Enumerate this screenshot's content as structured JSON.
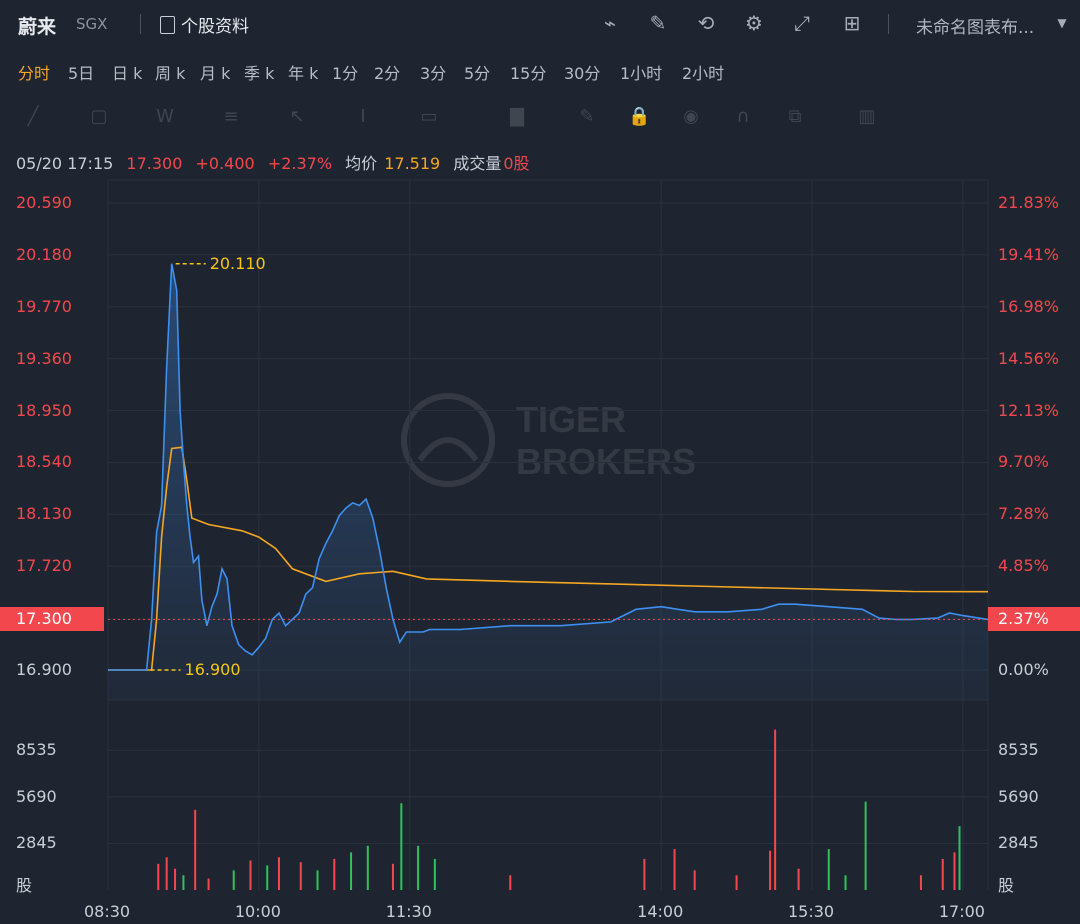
{
  "header": {
    "name": "蔚来",
    "exchange": "SGX",
    "info_label": "个股资料",
    "chart_title": "未命名图表布...",
    "icons": [
      "chart-line-icon",
      "edit-icon",
      "refresh-icon",
      "gear-icon",
      "fullscreen-icon",
      "grid-icon",
      "dropdown-icon"
    ]
  },
  "tabs": [
    {
      "label": "分时",
      "active": true
    },
    {
      "label": "5日"
    },
    {
      "label": "日 k"
    },
    {
      "label": "周 k"
    },
    {
      "label": "月 k"
    },
    {
      "label": "季 k"
    },
    {
      "label": "年 k"
    },
    {
      "label": "1分"
    },
    {
      "label": "2分"
    },
    {
      "label": "3分"
    },
    {
      "label": "5分"
    },
    {
      "label": "15分"
    },
    {
      "label": "30分"
    },
    {
      "label": "1小时"
    },
    {
      "label": "2小时"
    }
  ],
  "infobar": {
    "datetime": "05/20 17:15",
    "price": "17.300",
    "change": "+0.400",
    "pct": "+2.37%",
    "avg_label": "均价",
    "avg": "17.519",
    "vol_label": "成交量",
    "vol": "0",
    "vol_unit": "股"
  },
  "colors": {
    "up": "#f2484d",
    "down": "#2fc25b",
    "price_line": "#3d8ff0",
    "avg_line": "#f5a623",
    "background": "#1f2530"
  },
  "chart_data": {
    "type": "line",
    "price_axis_left": [
      "20.590",
      "20.180",
      "19.770",
      "19.360",
      "18.950",
      "18.540",
      "18.130",
      "17.720",
      "17.300",
      "16.900"
    ],
    "price_axis_right": [
      "21.83%",
      "19.41%",
      "16.98%",
      "14.56%",
      "12.13%",
      "9.70%",
      "7.28%",
      "4.85%",
      "2.37%",
      "0.00%"
    ],
    "current_price_tag": "17.300",
    "current_pct_tag": "2.37%",
    "high_label": "20.110",
    "low_label": "16.900",
    "volume_axis": [
      "8535",
      "5690",
      "2845",
      "股"
    ],
    "x_ticks": [
      "08:30",
      "10:00",
      "11:30",
      "14:00",
      "15:30",
      "17:00"
    ],
    "ylim": [
      16.9,
      20.59
    ],
    "price_series": [
      [
        "08:30",
        16.9
      ],
      [
        "08:53",
        16.9
      ],
      [
        "08:56",
        17.3
      ],
      [
        "08:59",
        17.99
      ],
      [
        "09:02",
        18.2
      ],
      [
        "09:05",
        19.3
      ],
      [
        "09:08",
        20.11
      ],
      [
        "09:11",
        19.9
      ],
      [
        "09:13",
        18.95
      ],
      [
        "09:15",
        18.55
      ],
      [
        "09:17",
        18.2
      ],
      [
        "09:19",
        17.95
      ],
      [
        "09:21",
        17.75
      ],
      [
        "09:24",
        17.8
      ],
      [
        "09:26",
        17.45
      ],
      [
        "09:29",
        17.25
      ],
      [
        "09:32",
        17.4
      ],
      [
        "09:35",
        17.5
      ],
      [
        "09:38",
        17.7
      ],
      [
        "09:41",
        17.62
      ],
      [
        "09:44",
        17.25
      ],
      [
        "09:48",
        17.1
      ],
      [
        "09:52",
        17.05
      ],
      [
        "09:56",
        17.02
      ],
      [
        "10:00",
        17.08
      ],
      [
        "10:04",
        17.15
      ],
      [
        "10:08",
        17.3
      ],
      [
        "10:12",
        17.35
      ],
      [
        "10:16",
        17.25
      ],
      [
        "10:20",
        17.3
      ],
      [
        "10:24",
        17.35
      ],
      [
        "10:28",
        17.5
      ],
      [
        "10:32",
        17.55
      ],
      [
        "10:36",
        17.78
      ],
      [
        "10:40",
        17.9
      ],
      [
        "10:44",
        18.0
      ],
      [
        "10:48",
        18.12
      ],
      [
        "10:52",
        18.18
      ],
      [
        "10:56",
        18.22
      ],
      [
        "11:00",
        18.2
      ],
      [
        "11:04",
        18.25
      ],
      [
        "11:08",
        18.1
      ],
      [
        "11:12",
        17.85
      ],
      [
        "11:16",
        17.55
      ],
      [
        "11:20",
        17.3
      ],
      [
        "11:24",
        17.12
      ],
      [
        "11:28",
        17.2
      ],
      [
        "11:34",
        17.2
      ],
      [
        "11:38",
        17.2
      ],
      [
        "11:42",
        17.22
      ],
      [
        "12:00",
        17.22
      ],
      [
        "12:30",
        17.25
      ],
      [
        "13:00",
        17.25
      ],
      [
        "13:30",
        17.28
      ],
      [
        "13:45",
        17.38
      ],
      [
        "14:00",
        17.4
      ],
      [
        "14:10",
        17.38
      ],
      [
        "14:20",
        17.36
      ],
      [
        "14:40",
        17.36
      ],
      [
        "15:00",
        17.38
      ],
      [
        "15:10",
        17.42
      ],
      [
        "15:20",
        17.42
      ],
      [
        "15:40",
        17.4
      ],
      [
        "16:00",
        17.38
      ],
      [
        "16:10",
        17.31
      ],
      [
        "16:20",
        17.3
      ],
      [
        "16:30",
        17.3
      ],
      [
        "16:45",
        17.31
      ],
      [
        "16:52",
        17.35
      ],
      [
        "17:00",
        17.33
      ],
      [
        "17:15",
        17.3
      ]
    ],
    "avg_series": [
      [
        "08:30",
        16.9
      ],
      [
        "08:56",
        16.9
      ],
      [
        "08:59",
        17.3
      ],
      [
        "09:02",
        17.95
      ],
      [
        "09:05",
        18.35
      ],
      [
        "09:08",
        18.65
      ],
      [
        "09:14",
        18.66
      ],
      [
        "09:17",
        18.4
      ],
      [
        "09:20",
        18.1
      ],
      [
        "09:30",
        18.05
      ],
      [
        "09:50",
        18.0
      ],
      [
        "10:00",
        17.95
      ],
      [
        "10:10",
        17.86
      ],
      [
        "10:20",
        17.7
      ],
      [
        "10:40",
        17.6
      ],
      [
        "11:00",
        17.66
      ],
      [
        "11:20",
        17.68
      ],
      [
        "11:40",
        17.62
      ],
      [
        "12:30",
        17.6
      ],
      [
        "13:30",
        17.58
      ],
      [
        "14:30",
        17.56
      ],
      [
        "15:30",
        17.54
      ],
      [
        "16:30",
        17.52
      ],
      [
        "17:15",
        17.519
      ]
    ],
    "volume_bars": [
      [
        "09:00",
        1600,
        "up"
      ],
      [
        "09:05",
        2000,
        "up"
      ],
      [
        "09:10",
        1300,
        "up"
      ],
      [
        "09:15",
        900,
        "down"
      ],
      [
        "09:22",
        4900,
        "up"
      ],
      [
        "09:30",
        700,
        "up"
      ],
      [
        "09:45",
        1200,
        "down"
      ],
      [
        "09:55",
        1800,
        "up"
      ],
      [
        "10:05",
        1500,
        "down"
      ],
      [
        "10:12",
        2000,
        "up"
      ],
      [
        "10:25",
        1700,
        "up"
      ],
      [
        "10:35",
        1200,
        "down"
      ],
      [
        "10:45",
        1900,
        "up"
      ],
      [
        "10:55",
        2300,
        "down"
      ],
      [
        "11:05",
        2700,
        "down"
      ],
      [
        "11:20",
        1600,
        "up"
      ],
      [
        "11:25",
        5300,
        "down"
      ],
      [
        "11:35",
        2700,
        "down"
      ],
      [
        "11:45",
        1900,
        "down"
      ],
      [
        "12:30",
        900,
        "up"
      ],
      [
        "13:50",
        1900,
        "up"
      ],
      [
        "14:08",
        2500,
        "up"
      ],
      [
        "14:20",
        1200,
        "up"
      ],
      [
        "14:45",
        900,
        "up"
      ],
      [
        "15:05",
        2400,
        "up"
      ],
      [
        "15:08",
        9800,
        "up"
      ],
      [
        "15:22",
        1300,
        "up"
      ],
      [
        "15:40",
        2500,
        "down"
      ],
      [
        "15:50",
        900,
        "down"
      ],
      [
        "16:02",
        5400,
        "down"
      ],
      [
        "16:35",
        900,
        "up"
      ],
      [
        "16:48",
        1900,
        "up"
      ],
      [
        "16:55",
        2300,
        "up"
      ],
      [
        "16:58",
        3900,
        "down"
      ]
    ]
  }
}
